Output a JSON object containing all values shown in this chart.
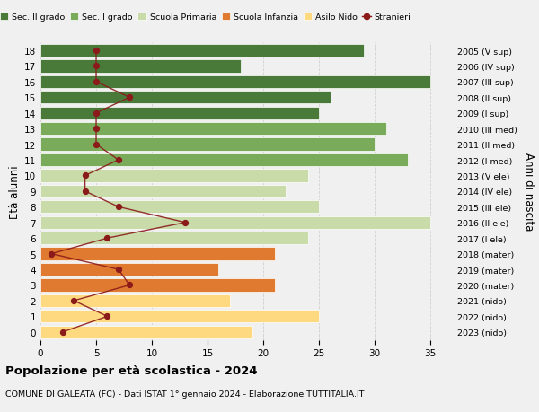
{
  "ages": [
    0,
    1,
    2,
    3,
    4,
    5,
    6,
    7,
    8,
    9,
    10,
    11,
    12,
    13,
    14,
    15,
    16,
    17,
    18
  ],
  "right_labels": [
    "2023 (nido)",
    "2022 (nido)",
    "2021 (nido)",
    "2020 (mater)",
    "2019 (mater)",
    "2018 (mater)",
    "2017 (I ele)",
    "2016 (II ele)",
    "2015 (III ele)",
    "2014 (IV ele)",
    "2013 (V ele)",
    "2012 (I med)",
    "2011 (II med)",
    "2010 (III med)",
    "2009 (I sup)",
    "2008 (II sup)",
    "2007 (III sup)",
    "2006 (IV sup)",
    "2005 (V sup)"
  ],
  "bar_values": [
    19,
    25,
    17,
    21,
    16,
    21,
    24,
    35,
    25,
    22,
    24,
    33,
    30,
    31,
    25,
    26,
    35,
    18,
    29
  ],
  "bar_colors": [
    "#ffd980",
    "#ffd980",
    "#ffd980",
    "#e07a30",
    "#e07a30",
    "#e07a30",
    "#c8dba8",
    "#c8dba8",
    "#c8dba8",
    "#c8dba8",
    "#c8dba8",
    "#7aab5a",
    "#7aab5a",
    "#7aab5a",
    "#4a7a3a",
    "#4a7a3a",
    "#4a7a3a",
    "#4a7a3a",
    "#4a7a3a"
  ],
  "stranieri_values": [
    2,
    6,
    3,
    8,
    7,
    1,
    6,
    13,
    7,
    4,
    4,
    7,
    5,
    5,
    5,
    8,
    5,
    5,
    5
  ],
  "xlim": [
    0,
    37
  ],
  "ylabel_left": "Età alunni",
  "ylabel_right": "Anni di nascita",
  "title": "Popolazione per età scolastica - 2024",
  "subtitle": "COMUNE DI GALEATA (FC) - Dati ISTAT 1° gennaio 2024 - Elaborazione TUTTITALIA.IT",
  "legend_labels": [
    "Sec. II grado",
    "Sec. I grado",
    "Scuola Primaria",
    "Scuola Infanzia",
    "Asilo Nido",
    "Stranieri"
  ],
  "legend_colors": [
    "#4a7a3a",
    "#7aab5a",
    "#c8dba8",
    "#e07a30",
    "#ffd980",
    "#8b1a1a"
  ],
  "bg_color": "#f0f0f0",
  "bar_height": 0.82,
  "grid_color": "#d0d0d0",
  "stranieri_line_color": "#8b1a1a",
  "stranieri_dot_color": "#8b1a1a",
  "xticks": [
    0,
    5,
    10,
    15,
    20,
    25,
    30,
    35
  ]
}
